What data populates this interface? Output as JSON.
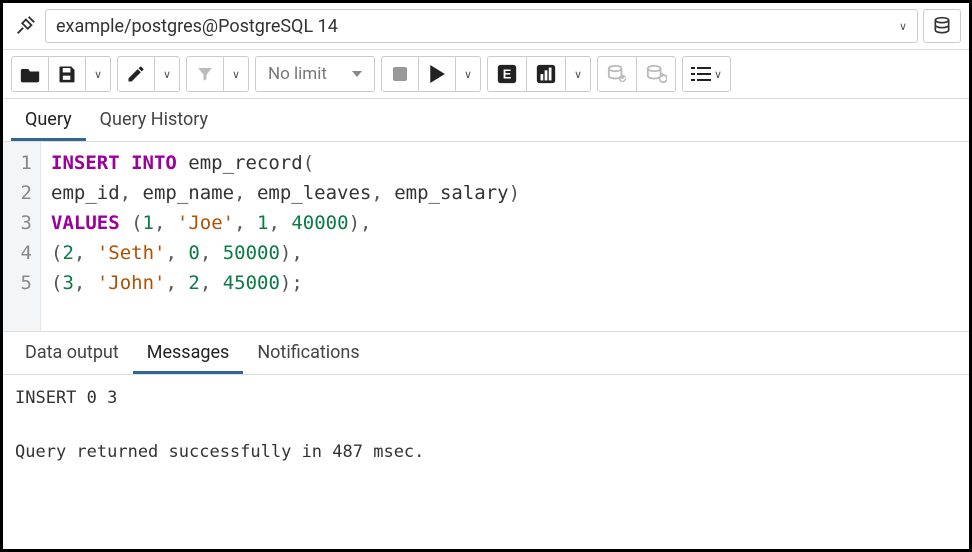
{
  "connection": {
    "label": "example/postgres@PostgreSQL 14"
  },
  "toolbar": {
    "limit_label": "No limit"
  },
  "editor_tabs": {
    "query": "Query",
    "history": "Query History",
    "active": "query"
  },
  "sql": {
    "lines": [
      {
        "n": 1,
        "tokens": [
          {
            "t": "INSERT INTO",
            "c": "kw"
          },
          {
            "t": " emp_record",
            "c": ""
          },
          {
            "t": "(",
            "c": "pn"
          }
        ]
      },
      {
        "n": 2,
        "tokens": [
          {
            "t": "emp_id",
            "c": ""
          },
          {
            "t": ",",
            "c": "pn"
          },
          {
            "t": " emp_name",
            "c": ""
          },
          {
            "t": ",",
            "c": "pn"
          },
          {
            "t": " emp_leaves",
            "c": ""
          },
          {
            "t": ",",
            "c": "pn"
          },
          {
            "t": " emp_salary",
            "c": ""
          },
          {
            "t": ")",
            "c": "pn"
          }
        ]
      },
      {
        "n": 3,
        "tokens": [
          {
            "t": "VALUES",
            "c": "kw"
          },
          {
            "t": " (",
            "c": "pn"
          },
          {
            "t": "1",
            "c": "num"
          },
          {
            "t": ",",
            "c": "pn"
          },
          {
            "t": " ",
            "c": ""
          },
          {
            "t": "'Joe'",
            "c": "str"
          },
          {
            "t": ",",
            "c": "pn"
          },
          {
            "t": " ",
            "c": ""
          },
          {
            "t": "1",
            "c": "num"
          },
          {
            "t": ",",
            "c": "pn"
          },
          {
            "t": " ",
            "c": ""
          },
          {
            "t": "40000",
            "c": "num"
          },
          {
            "t": "),",
            "c": "pn"
          }
        ]
      },
      {
        "n": 4,
        "tokens": [
          {
            "t": "(",
            "c": "pn"
          },
          {
            "t": "2",
            "c": "num"
          },
          {
            "t": ",",
            "c": "pn"
          },
          {
            "t": " ",
            "c": ""
          },
          {
            "t": "'Seth'",
            "c": "str"
          },
          {
            "t": ",",
            "c": "pn"
          },
          {
            "t": " ",
            "c": ""
          },
          {
            "t": "0",
            "c": "num"
          },
          {
            "t": ",",
            "c": "pn"
          },
          {
            "t": " ",
            "c": ""
          },
          {
            "t": "50000",
            "c": "num"
          },
          {
            "t": "),",
            "c": "pn"
          }
        ]
      },
      {
        "n": 5,
        "tokens": [
          {
            "t": "(",
            "c": "pn"
          },
          {
            "t": "3",
            "c": "num"
          },
          {
            "t": ",",
            "c": "pn"
          },
          {
            "t": " ",
            "c": ""
          },
          {
            "t": "'John'",
            "c": "str"
          },
          {
            "t": ",",
            "c": "pn"
          },
          {
            "t": " ",
            "c": ""
          },
          {
            "t": "2",
            "c": "num"
          },
          {
            "t": ",",
            "c": "pn"
          },
          {
            "t": " ",
            "c": ""
          },
          {
            "t": "45000",
            "c": "num"
          },
          {
            "t": ");",
            "c": "pn"
          }
        ]
      }
    ]
  },
  "output_tabs": {
    "data": "Data output",
    "messages": "Messages",
    "notifications": "Notifications",
    "active": "messages"
  },
  "messages": {
    "line1": "INSERT 0 3",
    "line2": "Query returned successfully in 487 msec."
  },
  "colors": {
    "keyword": "#9b009b",
    "number": "#0b7a45",
    "string": "#b05000",
    "punct": "#555555",
    "tab_active_border": "#326690",
    "gutter_bg": "#f3f5f7",
    "border": "#dddddd"
  }
}
